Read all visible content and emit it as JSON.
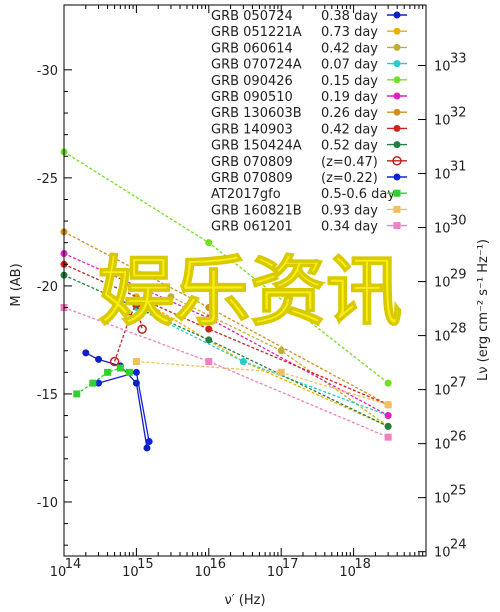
{
  "chart_data": {
    "type": "line",
    "xlabel": "ν′ (Hz)",
    "ylabel_left": "M (AB)",
    "ylabel_right": "Lν (erg cm⁻² s⁻¹ Hz⁻¹)",
    "x_scale": "log",
    "xlim": [
      100000000000000.0,
      1e+19
    ],
    "x_ticks": [
      {
        "value": 100000000000000.0,
        "base": "10",
        "exp": "14"
      },
      {
        "value": 1000000000000000.0,
        "base": "10",
        "exp": "15"
      },
      {
        "value": 1e+16,
        "base": "10",
        "exp": "16"
      },
      {
        "value": 1e+17,
        "base": "10",
        "exp": "17"
      },
      {
        "value": 1e+18,
        "base": "10",
        "exp": "18"
      }
    ],
    "ylim_left": [
      -33,
      -7.5
    ],
    "y_ticks_left": [
      "-30",
      "-25",
      "-20",
      "-15",
      "-10"
    ],
    "y_ticks_right": [
      {
        "value": 33,
        "base": "10",
        "exp": "33"
      },
      {
        "value": 32,
        "base": "10",
        "exp": "32"
      },
      {
        "value": 31,
        "base": "10",
        "exp": "31"
      },
      {
        "value": 30,
        "base": "10",
        "exp": "30"
      },
      {
        "value": 29,
        "base": "10",
        "exp": "29"
      },
      {
        "value": 28,
        "base": "10",
        "exp": "28"
      },
      {
        "value": 27,
        "base": "10",
        "exp": "27"
      },
      {
        "value": 26,
        "base": "10",
        "exp": "26"
      },
      {
        "value": 25,
        "base": "10",
        "exp": "25"
      },
      {
        "value": 24,
        "base": "10",
        "exp": "24"
      }
    ],
    "legend_position": "top-right",
    "series": [
      {
        "name": "GRB 050724",
        "z": "0.38 day",
        "color": "#1020c0",
        "marker": "circle",
        "x": [
          200000000000000.0,
          300000000000000.0,
          600000000000000.0,
          1000000000000000.0,
          1400000000000000.0
        ],
        "y": [
          -16.9,
          -16.6,
          -16.3,
          -15.5,
          -12.5
        ]
      },
      {
        "name": "GRB 051221A",
        "z": "0.73 day",
        "color": "#e8b000",
        "marker": "circle",
        "x": [
          1000000000000000.0,
          3e+16,
          3e+18
        ],
        "y": [
          -19.5,
          -16.5,
          -13.5
        ]
      },
      {
        "name": "GRB 060614",
        "z": "0.42 day",
        "color": "#c0b030",
        "marker": "circle",
        "x": [
          3000000000000000.0,
          1e+17,
          3e+18
        ],
        "y": [
          -19.5,
          -17.0,
          -13.5
        ]
      },
      {
        "name": "GRB 070724A",
        "z": "0.07 day",
        "color": "#20d0d0",
        "marker": "circle",
        "x": [
          1000000000000000.0,
          3e+16,
          3e+18
        ],
        "y": [
          -19.0,
          -16.5,
          -14.0
        ]
      },
      {
        "name": "GRB 090426",
        "z": "0.15 day",
        "color": "#70e020",
        "marker": "circle",
        "x": [
          100000000000000.0,
          1e+16,
          3e+18
        ],
        "y": [
          -26.2,
          -22.0,
          -15.5
        ]
      },
      {
        "name": "GRB 090510",
        "z": "0.19 day",
        "color": "#e020c0",
        "marker": "circle",
        "x": [
          100000000000000.0,
          1e+16,
          3e+18
        ],
        "y": [
          -21.5,
          -18.5,
          -14.0
        ]
      },
      {
        "name": "GRB 130603B",
        "z": "0.26 day",
        "color": "#d09020",
        "marker": "circle",
        "x": [
          100000000000000.0,
          1e+16,
          3e+18
        ],
        "y": [
          -22.5,
          -19.0,
          -14.5
        ]
      },
      {
        "name": "GRB 140903",
        "z": "0.42 day",
        "color": "#d02020",
        "marker": "circle",
        "x": [
          100000000000000.0,
          1e+16,
          3e+18
        ],
        "y": [
          -21.0,
          -18.0,
          -14.5
        ]
      },
      {
        "name": "GRB 150424A",
        "z": "0.52 day",
        "color": "#208040",
        "marker": "circle",
        "x": [
          100000000000000.0,
          1e+16,
          3e+18
        ],
        "y": [
          -20.5,
          -17.5,
          -13.5
        ]
      },
      {
        "name": "GRB 070809",
        "z": "(z=0.47)",
        "color": "#c02020",
        "marker": "open-circle",
        "x": [
          500000000000000.0,
          800000000000000.0,
          1000000000000000.0,
          1200000000000000.0
        ],
        "y": [
          -16.5,
          -18.5,
          -19.2,
          -18.0
        ]
      },
      {
        "name": "GRB 070809",
        "z": "(z=0.22)",
        "color": "#1020e0",
        "marker": "circle",
        "x": [
          300000000000000.0,
          1000000000000000.0,
          1500000000000000.0
        ],
        "y": [
          -15.5,
          -16.0,
          -12.8
        ]
      },
      {
        "name": "AT2017gfo",
        "z": "0.5-0.6 day",
        "color": "#30d030",
        "marker": "square",
        "x": [
          150000000000000.0,
          250000000000000.0,
          400000000000000.0,
          600000000000000.0,
          800000000000000.0
        ],
        "y": [
          -15.0,
          -15.5,
          -16.0,
          -16.2,
          -16.0
        ]
      },
      {
        "name": "GRB 160821B",
        "z": "0.93 day",
        "color": "#f0c060",
        "marker": "square",
        "x": [
          1000000000000000.0,
          1e+17,
          3e+18
        ],
        "y": [
          -16.5,
          -16.0,
          -14.5
        ]
      },
      {
        "name": "GRB 061201",
        "z": "0.34 day",
        "color": "#f080c0",
        "marker": "square",
        "x": [
          100000000000000.0,
          1e+16,
          3e+18
        ],
        "y": [
          -19.0,
          -16.5,
          -13.0
        ]
      }
    ]
  },
  "overlay": {
    "text": "娱乐资讯"
  }
}
